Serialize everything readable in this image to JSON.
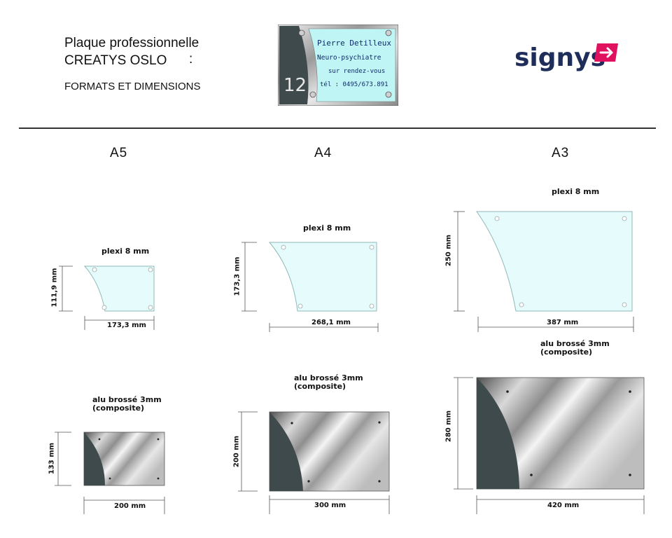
{
  "header": {
    "title_line1": "Plaque professionnelle",
    "title_line2": "CREATYS OSLO",
    "title_colon": ":",
    "subtitle": "FORMATS ET DIMENSIONS"
  },
  "sample_plate": {
    "number": "12",
    "name": "Pierre Detilleux",
    "profession": "Neuro-psychiatre",
    "appointment": "sur rendez-vous",
    "phone": "tél : 0495/673.891"
  },
  "logo": {
    "text_part1": "sig",
    "text_part2": "nys",
    "arrow_icon": "arrow-right-icon",
    "color_dark": "#1e2d5a",
    "color_accent": "#e0115f"
  },
  "columns": [
    {
      "size_label": "A5",
      "plexi": {
        "material": "plexi 8 mm",
        "width": "173,3 mm",
        "height": "111,9 mm"
      },
      "alu": {
        "material_line1": "alu brossé 3mm",
        "material_line2": "(composite)",
        "width": "200 mm",
        "height": "133 mm"
      }
    },
    {
      "size_label": "A4",
      "plexi": {
        "material": "plexi 8 mm",
        "width": "268,1 mm",
        "height": "173,3 mm"
      },
      "alu": {
        "material_line1": "alu brossé 3mm",
        "material_line2": "(composite)",
        "width": "300 mm",
        "height": "200 mm"
      }
    },
    {
      "size_label": "A3",
      "plexi": {
        "material": "plexi 8 mm",
        "width": "387 mm",
        "height": "250 mm"
      },
      "alu": {
        "material_line1": "alu brossé 3mm",
        "material_line2": "(composite)",
        "width": "420 mm",
        "height": "280 mm"
      }
    }
  ],
  "colors": {
    "plexi_fill": "#e6fbfb",
    "alu_dark_panel": "#3f4a4c",
    "rule": "#333333"
  }
}
